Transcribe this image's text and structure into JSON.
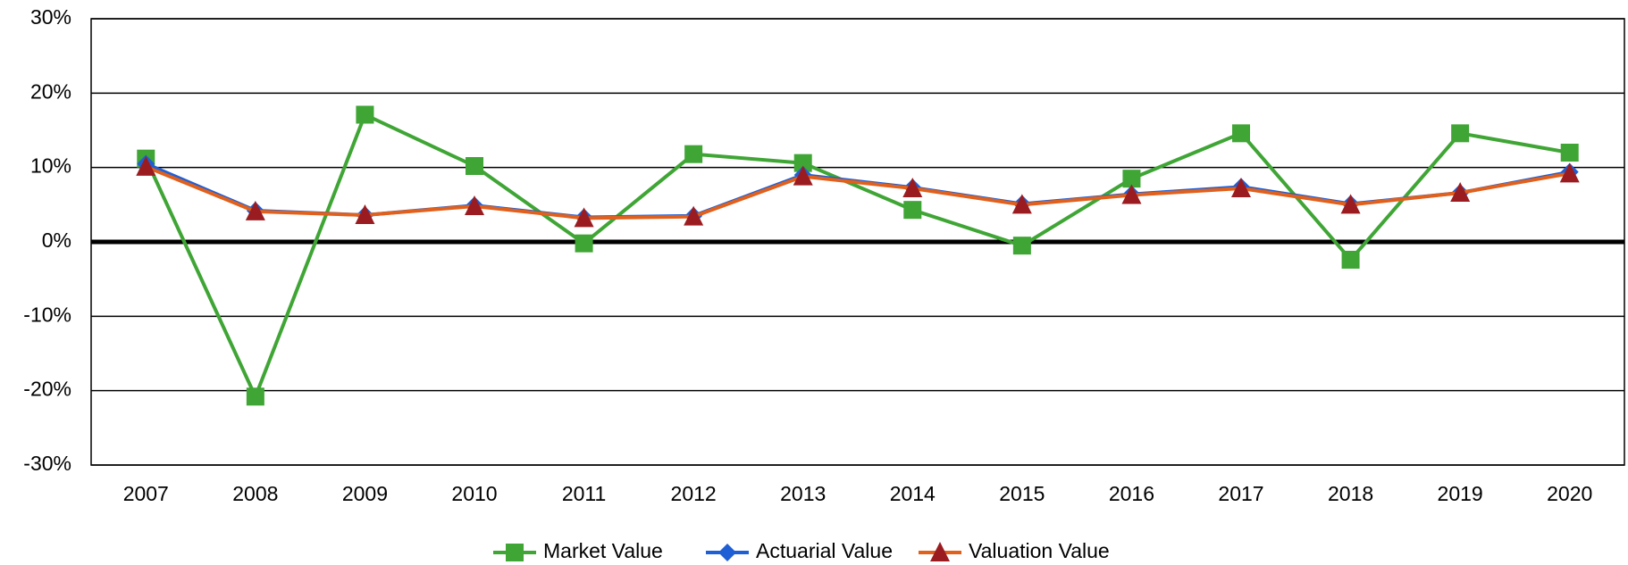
{
  "chart_data": {
    "type": "line",
    "categories": [
      "2007",
      "2008",
      "2009",
      "2010",
      "2011",
      "2012",
      "2013",
      "2014",
      "2015",
      "2016",
      "2017",
      "2018",
      "2019",
      "2020"
    ],
    "series": [
      {
        "name": "Market Value",
        "color": "#3fa535",
        "marker": "square",
        "marker_color": "#3fa535",
        "values": [
          11.2,
          -20.8,
          17.1,
          10.2,
          -0.2,
          11.8,
          10.6,
          4.3,
          -0.5,
          8.5,
          14.6,
          -2.4,
          14.6,
          12.0
        ]
      },
      {
        "name": "Actuarial Value",
        "color": "#1f5fd6",
        "marker": "diamond",
        "marker_color": "#1f5fd6",
        "values": [
          10.5,
          4.2,
          3.6,
          4.9,
          3.3,
          3.5,
          9.0,
          7.3,
          5.1,
          6.4,
          7.4,
          5.1,
          6.6,
          9.4
        ]
      },
      {
        "name": "Valuation Value",
        "color": "#e0601c",
        "marker": "triangle",
        "marker_color": "#9b1c20",
        "values": [
          10.1,
          4.1,
          3.6,
          4.8,
          3.2,
          3.4,
          8.8,
          7.2,
          5.0,
          6.3,
          7.2,
          5.0,
          6.6,
          9.2
        ]
      }
    ],
    "ylim": [
      -30,
      30
    ],
    "yticks": [
      {
        "value": -30,
        "label": "-30%"
      },
      {
        "value": -20,
        "label": "-20%"
      },
      {
        "value": -10,
        "label": "-10%"
      },
      {
        "value": 0,
        "label": "0%"
      },
      {
        "value": 10,
        "label": "10%"
      },
      {
        "value": 20,
        "label": "20%"
      },
      {
        "value": 30,
        "label": "30%"
      }
    ],
    "grid": true,
    "legend": "bottom"
  }
}
